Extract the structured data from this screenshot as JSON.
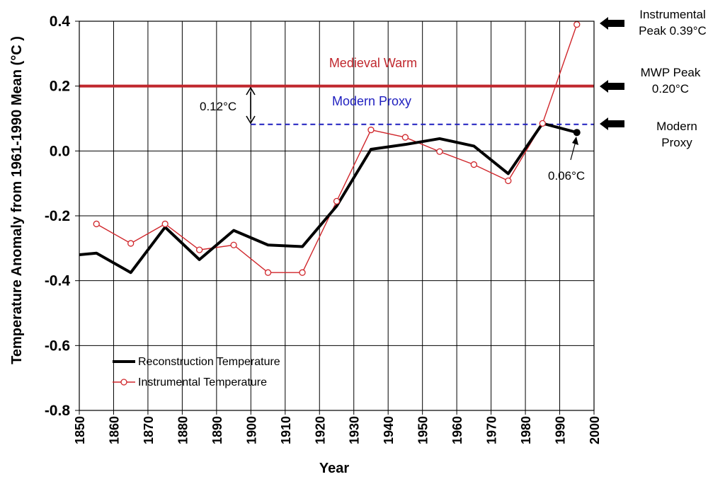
{
  "chart_data": {
    "type": "line",
    "xlabel": "Year",
    "ylabel": "Temperature Anomaly from 1961-1990 Mean (°C )",
    "xlim": [
      1850,
      2000
    ],
    "ylim": [
      -0.8,
      0.4
    ],
    "x_ticks": [
      "1850",
      "1860",
      "1870",
      "1880",
      "1890",
      "1900",
      "1910",
      "1920",
      "1930",
      "1940",
      "1950",
      "1960",
      "1970",
      "1980",
      "1990",
      "2000"
    ],
    "y_ticks": [
      "-0.8",
      "-0.6",
      "-0.4",
      "-0.2",
      "0.0",
      "0.2",
      "0.4"
    ],
    "grid": true,
    "legend_position": "bottom-left",
    "series": [
      {
        "name": "Reconstruction Temperature",
        "color": "#000000",
        "x": [
          1850,
          1855,
          1865,
          1875,
          1885,
          1895,
          1905,
          1915,
          1925,
          1935,
          1945,
          1955,
          1965,
          1975,
          1985,
          1995
        ],
        "y": [
          -0.32,
          -0.315,
          -0.375,
          -0.235,
          -0.335,
          -0.245,
          -0.29,
          -0.295,
          -0.17,
          0.005,
          0.02,
          0.038,
          0.015,
          -0.07,
          0.085,
          0.057
        ]
      },
      {
        "name": "Instrumental Temperature",
        "color": "#d0262b",
        "x": [
          1855,
          1865,
          1875,
          1885,
          1895,
          1905,
          1915,
          1925,
          1935,
          1945,
          1955,
          1965,
          1975,
          1985,
          1995
        ],
        "y": [
          -0.225,
          -0.285,
          -0.225,
          -0.305,
          -0.29,
          -0.375,
          -0.375,
          -0.155,
          0.065,
          0.042,
          -0.002,
          -0.042,
          -0.092,
          0.085,
          0.39
        ]
      }
    ],
    "reference_lines": [
      {
        "label": "Medieval Warm",
        "y": 0.2,
        "x_start": 1850,
        "x_end": 2000,
        "color": "#c0272d",
        "style": "solid"
      },
      {
        "label": "Modern Proxy",
        "y": 0.082,
        "x_start": 1900,
        "x_end": 2000,
        "color": "#1f1fbf",
        "style": "dashed"
      }
    ],
    "annotations": {
      "gap": "0.12°C",
      "end_value": "0.06°C"
    },
    "side_labels": [
      {
        "line1": "Instrumental",
        "line2": "Peak 0.39°C",
        "y": 0.39
      },
      {
        "line1": "MWP Peak",
        "line2": "0.20°C",
        "y": 0.2
      },
      {
        "line1": "Modern",
        "line2": "Proxy",
        "y": 0.082
      }
    ]
  }
}
